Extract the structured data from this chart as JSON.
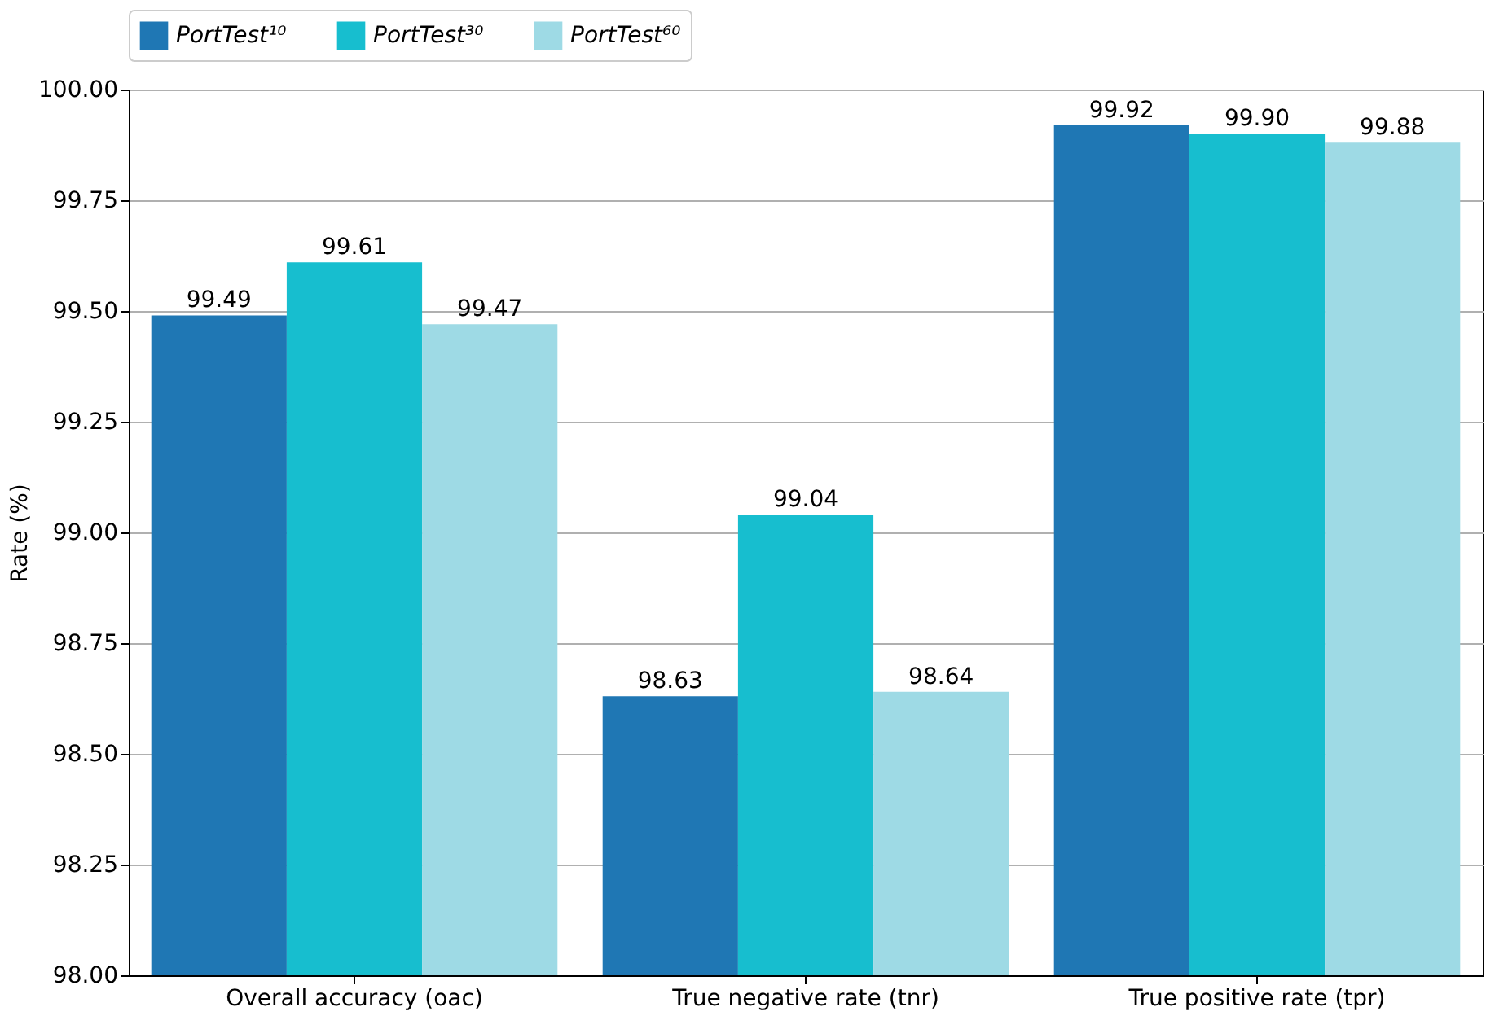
{
  "chart_data": {
    "type": "bar",
    "ylabel": "Rate (%)",
    "categories": [
      "Overall accuracy (oac)",
      "True negative rate (tnr)",
      "True positive rate (tpr)"
    ],
    "series": [
      {
        "name": "PortTest¹⁰",
        "color": "#1f77b4",
        "values": [
          99.49,
          98.63,
          99.92
        ],
        "value_labels": [
          "99.49",
          "98.63",
          "99.92"
        ]
      },
      {
        "name": "PortTest³⁰",
        "color": "#17becf",
        "values": [
          99.61,
          99.04,
          99.9
        ],
        "value_labels": [
          "99.61",
          "99.04",
          "99.90"
        ]
      },
      {
        "name": "PortTest⁶⁰",
        "color": "#9edae5",
        "values": [
          99.47,
          98.64,
          99.88
        ],
        "value_labels": [
          "99.47",
          "98.64",
          "99.88"
        ]
      }
    ],
    "ylim": [
      98,
      100
    ],
    "yticks": [
      "98.00",
      "98.25",
      "98.50",
      "98.75",
      "99.00",
      "99.25",
      "99.50",
      "99.75",
      "100.00"
    ],
    "grid": "y",
    "legend": "top"
  }
}
